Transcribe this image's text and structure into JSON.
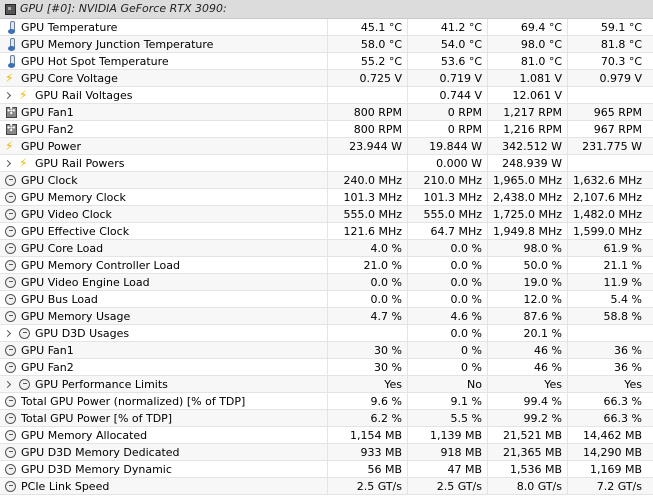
{
  "header": {
    "title": "GPU [#0]: NVIDIA GeForce RTX 3090:",
    "icon": "chip-icon"
  },
  "rows": [
    {
      "label": "GPU Temperature",
      "icon": "thermometer",
      "v": [
        "45.1 °C",
        "41.2 °C",
        "69.4 °C",
        "59.1 °C"
      ]
    },
    {
      "label": "GPU Memory Junction Temperature",
      "icon": "thermometer",
      "v": [
        "58.0 °C",
        "54.0 °C",
        "98.0 °C",
        "81.8 °C"
      ]
    },
    {
      "label": "GPU Hot Spot Temperature",
      "icon": "thermometer",
      "v": [
        "55.2 °C",
        "53.6 °C",
        "81.0 °C",
        "70.3 °C"
      ]
    },
    {
      "label": "GPU Core Voltage",
      "icon": "bolt",
      "v": [
        "0.725 V",
        "0.719 V",
        "1.081 V",
        "0.979 V"
      ]
    },
    {
      "label": "GPU Rail Voltages",
      "icon": "bolt",
      "expand": true,
      "v": [
        "",
        "0.744 V",
        "12.061 V",
        ""
      ]
    },
    {
      "label": "GPU Fan1",
      "icon": "fan",
      "v": [
        "800 RPM",
        "0 RPM",
        "1,217 RPM",
        "965 RPM"
      ]
    },
    {
      "label": "GPU Fan2",
      "icon": "fan",
      "v": [
        "800 RPM",
        "0 RPM",
        "1,216 RPM",
        "967 RPM"
      ]
    },
    {
      "label": "GPU Power",
      "icon": "bolt",
      "v": [
        "23.944 W",
        "19.844 W",
        "342.512 W",
        "231.775 W"
      ]
    },
    {
      "label": "GPU Rail Powers",
      "icon": "bolt",
      "expand": true,
      "v": [
        "",
        "0.000 W",
        "248.939 W",
        ""
      ]
    },
    {
      "label": "GPU Clock",
      "icon": "clock",
      "v": [
        "240.0 MHz",
        "210.0 MHz",
        "1,965.0 MHz",
        "1,632.6 MHz"
      ]
    },
    {
      "label": "GPU Memory Clock",
      "icon": "clock",
      "v": [
        "101.3 MHz",
        "101.3 MHz",
        "2,438.0 MHz",
        "2,107.6 MHz"
      ]
    },
    {
      "label": "GPU Video Clock",
      "icon": "clock",
      "v": [
        "555.0 MHz",
        "555.0 MHz",
        "1,725.0 MHz",
        "1,482.0 MHz"
      ]
    },
    {
      "label": "GPU Effective Clock",
      "icon": "clock",
      "v": [
        "121.6 MHz",
        "64.7 MHz",
        "1,949.8 MHz",
        "1,599.0 MHz"
      ]
    },
    {
      "label": "GPU Core Load",
      "icon": "clock",
      "v": [
        "4.0 %",
        "0.0 %",
        "98.0 %",
        "61.9 %"
      ]
    },
    {
      "label": "GPU Memory Controller Load",
      "icon": "clock",
      "v": [
        "21.0 %",
        "0.0 %",
        "50.0 %",
        "21.1 %"
      ]
    },
    {
      "label": "GPU Video Engine Load",
      "icon": "clock",
      "v": [
        "0.0 %",
        "0.0 %",
        "19.0 %",
        "11.9 %"
      ]
    },
    {
      "label": "GPU Bus Load",
      "icon": "clock",
      "v": [
        "0.0 %",
        "0.0 %",
        "12.0 %",
        "5.4 %"
      ]
    },
    {
      "label": "GPU Memory Usage",
      "icon": "clock",
      "v": [
        "4.7 %",
        "4.6 %",
        "87.6 %",
        "58.8 %"
      ]
    },
    {
      "label": "GPU D3D Usages",
      "icon": "clock",
      "expand": true,
      "v": [
        "",
        "0.0 %",
        "20.1 %",
        ""
      ]
    },
    {
      "label": "GPU Fan1",
      "icon": "clock",
      "v": [
        "30 %",
        "0 %",
        "46 %",
        "36 %"
      ]
    },
    {
      "label": "GPU Fan2",
      "icon": "clock",
      "v": [
        "30 %",
        "0 %",
        "46 %",
        "36 %"
      ]
    },
    {
      "label": "GPU Performance Limits",
      "icon": "clock",
      "expand": true,
      "v": [
        "Yes",
        "No",
        "Yes",
        "Yes"
      ]
    },
    {
      "label": "Total GPU Power (normalized) [% of TDP]",
      "icon": "clock",
      "v": [
        "9.6 %",
        "9.1 %",
        "99.4 %",
        "66.3 %"
      ]
    },
    {
      "label": "Total GPU Power [% of TDP]",
      "icon": "clock",
      "v": [
        "6.2 %",
        "5.5 %",
        "99.2 %",
        "66.3 %"
      ]
    },
    {
      "label": "GPU Memory Allocated",
      "icon": "clock",
      "v": [
        "1,154 MB",
        "1,139 MB",
        "21,521 MB",
        "14,462 MB"
      ]
    },
    {
      "label": "GPU D3D Memory Dedicated",
      "icon": "clock",
      "v": [
        "933 MB",
        "918 MB",
        "21,365 MB",
        "14,290 MB"
      ]
    },
    {
      "label": "GPU D3D Memory Dynamic",
      "icon": "clock",
      "v": [
        "56 MB",
        "47 MB",
        "1,536 MB",
        "1,169 MB"
      ]
    },
    {
      "label": "PCIe Link Speed",
      "icon": "clock",
      "v": [
        "2.5 GT/s",
        "2.5 GT/s",
        "8.0 GT/s",
        "7.2 GT/s"
      ]
    }
  ]
}
